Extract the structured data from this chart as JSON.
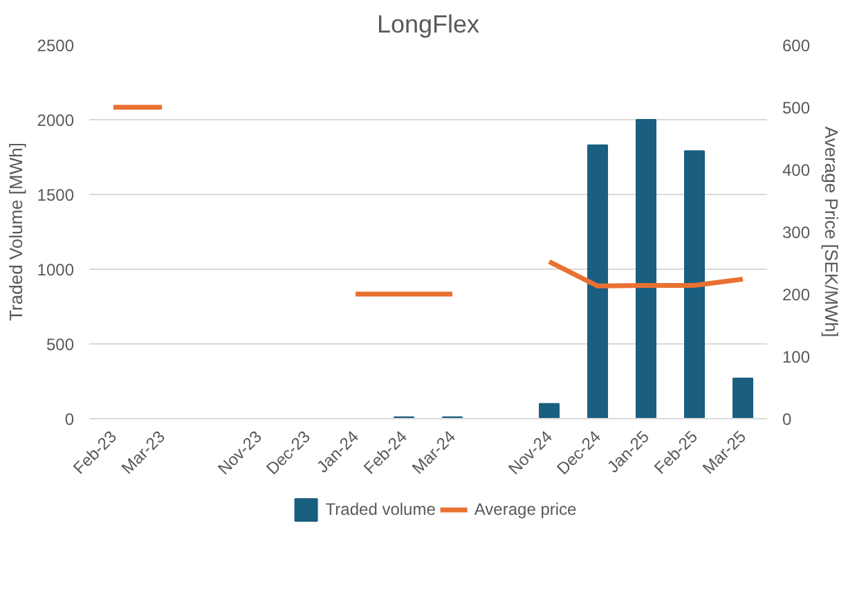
{
  "chart_data": {
    "type": "bar",
    "title": "LongFlex",
    "ylabel": "Traded Volume [MWh]",
    "y2label": "Average Price [SEK/MWh]",
    "categories": [
      "Feb-23",
      "Mar-23",
      null,
      "Nov-23",
      "Dec-23",
      "Jan-24",
      "Feb-24",
      "Mar-24",
      null,
      "Nov-24",
      "Dec-24",
      "Jan-25",
      "Feb-25",
      "Mar-25"
    ],
    "series": [
      {
        "name": "Traded volume",
        "color": "#1a5e80",
        "values": [
          null,
          null,
          null,
          null,
          null,
          null,
          10,
          10,
          null,
          100,
          1830,
          2000,
          1790,
          270
        ]
      },
      {
        "name": "Average price",
        "type": "line",
        "axis": "y2",
        "color": "#e97132",
        "values": [
          500,
          500,
          null,
          null,
          null,
          200,
          200,
          200,
          null,
          252,
          213,
          214,
          214,
          224
        ]
      }
    ],
    "ylim": [
      0,
      2500
    ],
    "yticks": [
      0,
      500,
      1000,
      1500,
      2000,
      2500
    ],
    "y2lim": [
      0,
      600
    ],
    "y2ticks": [
      0,
      100,
      200,
      300,
      400,
      500,
      600
    ],
    "grid": "y",
    "legend": "bottom"
  }
}
